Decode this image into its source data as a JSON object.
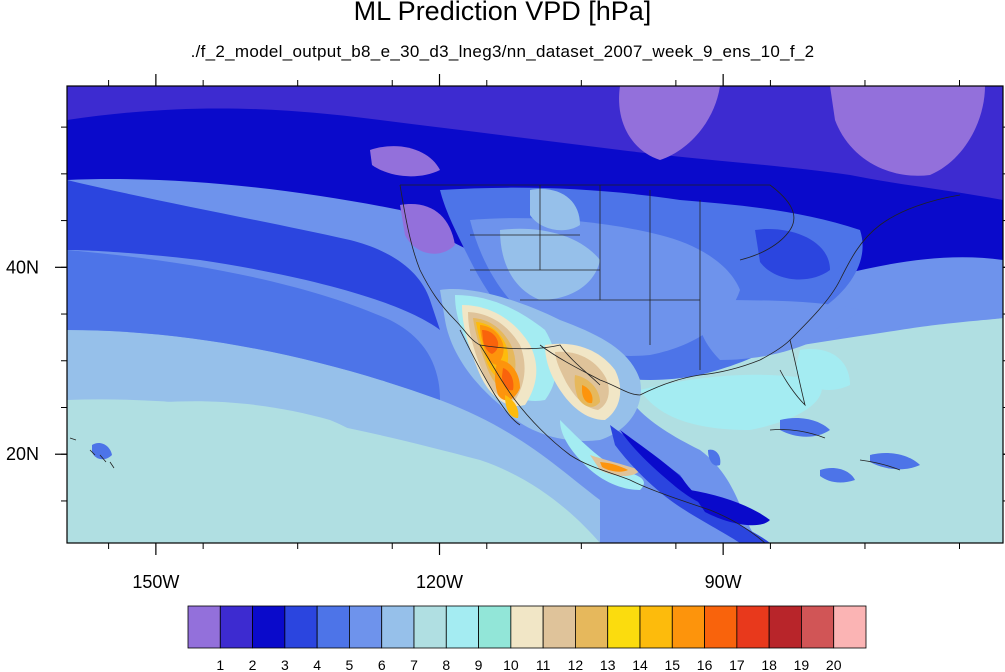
{
  "map": {
    "title": "ML Prediction VPD [hPa]",
    "subtitle": "./f_2_model_output_b8_e_30_d3_lneg3/nn_dataset_2007_week_9_ens_10_f_2",
    "y_ticks": [
      {
        "label": "40N",
        "lat": 40
      },
      {
        "label": "20N",
        "lat": 20
      }
    ],
    "x_ticks": [
      {
        "label": "150W",
        "lon": -150
      },
      {
        "label": "120W",
        "lon": -120
      },
      {
        "label": "90W",
        "lon": -90
      }
    ],
    "extent": {
      "lon_min": -159.4,
      "lon_max": -60.4,
      "lat_min": 10.5,
      "lat_max": 59.4
    }
  },
  "colorbar": {
    "labels": [
      "1",
      "2",
      "3",
      "4",
      "5",
      "6",
      "7",
      "8",
      "9",
      "10",
      "11",
      "12",
      "13",
      "14",
      "15",
      "16",
      "17",
      "18",
      "19",
      "20"
    ],
    "colors": [
      "#9370db",
      "#3d2bd0",
      "#0a0acb",
      "#2b45df",
      "#4d74e8",
      "#6e93ec",
      "#96c0ea",
      "#b0dfe2",
      "#a4ecf2",
      "#92e6d8",
      "#f1e6c6",
      "#dfc39a",
      "#e6b85c",
      "#fbdc0e",
      "#fdbb0c",
      "#fd940c",
      "#f9630c",
      "#e8391c",
      "#b8252a",
      "#d15556",
      "#fbb4b4"
    ]
  }
}
